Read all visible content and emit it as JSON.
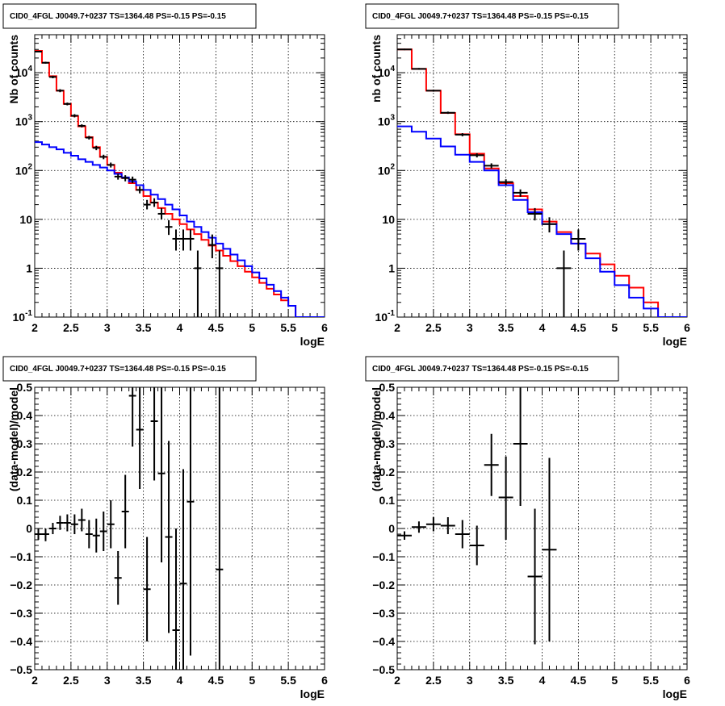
{
  "chart_data": [
    {
      "type": "line",
      "panel": "top-left",
      "title": "CID0_4FGL J0049.7+0237 TS=1364.48 PS=-0.15 PS=-0.15",
      "xlabel": "logE",
      "ylabel": "Nb of counts",
      "xlim": [
        2,
        6
      ],
      "ylim": [
        0.1,
        60000
      ],
      "yscale": "log",
      "grid": true,
      "x_ticks": [
        "2",
        "2.5",
        "3",
        "3.5",
        "4",
        "4.5",
        "5",
        "5.5",
        "6"
      ],
      "y_ticks": [
        {
          "value": 0.1,
          "base": "10",
          "exp": "-1"
        },
        {
          "value": 1,
          "label": "1"
        },
        {
          "value": 10,
          "label": "10"
        },
        {
          "value": 100,
          "base": "10",
          "exp": "2"
        },
        {
          "value": 1000,
          "base": "10",
          "exp": "3"
        },
        {
          "value": 10000,
          "base": "10",
          "exp": "4"
        }
      ],
      "bin_edges": [
        2.0,
        2.1,
        2.2,
        2.3,
        2.4,
        2.5,
        2.6,
        2.7,
        2.8,
        2.9,
        3.0,
        3.1,
        3.2,
        3.3,
        3.4,
        3.5,
        3.6,
        3.7,
        3.8,
        3.9,
        4.0,
        4.1,
        4.2,
        4.3,
        4.4,
        4.5,
        4.6,
        4.7,
        4.8,
        4.9,
        5.0,
        5.1,
        5.2,
        5.3,
        5.4,
        5.5,
        5.6,
        5.7,
        5.8,
        5.9,
        6.0
      ],
      "series": [
        {
          "kind": "step",
          "color": "#ff0000",
          "values": [
            28000,
            16000,
            8500,
            4300,
            2300,
            1300,
            800,
            480,
            300,
            190,
            130,
            90,
            70,
            55,
            40,
            30,
            22,
            17,
            13,
            10,
            8.0,
            6.2,
            5.0,
            3.8,
            2.9,
            2.3,
            1.8,
            1.4,
            1.1,
            0.85,
            0.65,
            0.5,
            0.38,
            0.29,
            0.22,
            0.17,
            0.1,
            0.1,
            0.1,
            0.1
          ]
        },
        {
          "kind": "step",
          "color": "#0000ff",
          "values": [
            380,
            340,
            300,
            270,
            230,
            200,
            170,
            150,
            130,
            115,
            100,
            85,
            72,
            60,
            50,
            40,
            32,
            26,
            20,
            16,
            12,
            9,
            7,
            5.5,
            4.2,
            3.2,
            2.5,
            1.9,
            1.45,
            1.1,
            0.82,
            0.62,
            0.46,
            0.34,
            0.25,
            0.17,
            0.1,
            0.1,
            0.1,
            0.1
          ]
        },
        {
          "kind": "points",
          "color": "#000000",
          "points": [
            {
              "x": 2.05,
              "y": 27000,
              "lo": 26000,
              "hi": 28000,
              "xerr": 0.05
            },
            {
              "x": 2.15,
              "y": 16000,
              "lo": 15300,
              "hi": 16800,
              "xerr": 0.05
            },
            {
              "x": 2.25,
              "y": 8200,
              "lo": 7700,
              "hi": 8700,
              "xerr": 0.05
            },
            {
              "x": 2.35,
              "y": 4300,
              "lo": 4000,
              "hi": 4600,
              "xerr": 0.05
            },
            {
              "x": 2.45,
              "y": 2300,
              "lo": 2150,
              "hi": 2450,
              "xerr": 0.05
            },
            {
              "x": 2.55,
              "y": 1320,
              "lo": 1220,
              "hi": 1420,
              "xerr": 0.05
            },
            {
              "x": 2.65,
              "y": 820,
              "lo": 760,
              "hi": 880,
              "xerr": 0.05
            },
            {
              "x": 2.75,
              "y": 470,
              "lo": 430,
              "hi": 510,
              "xerr": 0.05
            },
            {
              "x": 2.85,
              "y": 290,
              "lo": 260,
              "hi": 320,
              "xerr": 0.05
            },
            {
              "x": 2.95,
              "y": 190,
              "lo": 170,
              "hi": 210,
              "xerr": 0.05
            },
            {
              "x": 3.05,
              "y": 130,
              "lo": 115,
              "hi": 145,
              "xerr": 0.05
            },
            {
              "x": 3.15,
              "y": 75,
              "lo": 65,
              "hi": 85,
              "xerr": 0.05
            },
            {
              "x": 3.25,
              "y": 70,
              "lo": 60,
              "hi": 80,
              "xerr": 0.05
            },
            {
              "x": 3.35,
              "y": 65,
              "lo": 55,
              "hi": 75,
              "xerr": 0.05
            },
            {
              "x": 3.45,
              "y": 40,
              "lo": 34,
              "hi": 47,
              "xerr": 0.05
            },
            {
              "x": 3.55,
              "y": 20,
              "lo": 16,
              "hi": 25,
              "xerr": 0.05
            },
            {
              "x": 3.65,
              "y": 22,
              "lo": 18,
              "hi": 27,
              "xerr": 0.05
            },
            {
              "x": 3.75,
              "y": 13,
              "lo": 10,
              "hi": 17,
              "xerr": 0.05
            },
            {
              "x": 3.85,
              "y": 7,
              "lo": 4.8,
              "hi": 9.6,
              "xerr": 0.05
            },
            {
              "x": 3.95,
              "y": 4,
              "lo": 2.3,
              "hi": 6.2,
              "xerr": 0.05
            },
            {
              "x": 4.05,
              "y": 4,
              "lo": 2.3,
              "hi": 6.2,
              "xerr": 0.05
            },
            {
              "x": 4.15,
              "y": 4,
              "lo": 2.3,
              "hi": 6.2,
              "xerr": 0.05
            },
            {
              "x": 4.25,
              "y": 1,
              "lo": 0.1,
              "hi": 2.3,
              "xerr": 0.05
            },
            {
              "x": 4.45,
              "y": 3,
              "lo": 1.6,
              "hi": 4.9,
              "xerr": 0.05
            },
            {
              "x": 4.55,
              "y": 1,
              "lo": 0.1,
              "hi": 2.3,
              "xerr": 0.05
            }
          ]
        }
      ]
    },
    {
      "type": "line",
      "panel": "top-right",
      "title": "CID0_4FGL J0049.7+0237 TS=1364.48 PS=-0.15 PS=-0.15",
      "xlabel": "logE",
      "ylabel": "nb of counts",
      "xlim": [
        2,
        6
      ],
      "ylim": [
        0.1,
        60000
      ],
      "yscale": "log",
      "grid": true,
      "x_ticks": [
        "2",
        "2.5",
        "3",
        "3.5",
        "4",
        "4.5",
        "5",
        "5.5",
        "6"
      ],
      "y_ticks": [
        {
          "value": 0.1,
          "base": "10",
          "exp": "-1"
        },
        {
          "value": 1,
          "label": "1"
        },
        {
          "value": 10,
          "label": "10"
        },
        {
          "value": 100,
          "base": "10",
          "exp": "2"
        },
        {
          "value": 1000,
          "base": "10",
          "exp": "3"
        },
        {
          "value": 10000,
          "base": "10",
          "exp": "4"
        }
      ],
      "bin_edges": [
        2.0,
        2.2,
        2.4,
        2.6,
        2.8,
        3.0,
        3.2,
        3.4,
        3.6,
        3.8,
        4.0,
        4.2,
        4.4,
        4.6,
        4.8,
        5.0,
        5.2,
        5.4,
        5.6,
        5.8,
        6.0
      ],
      "series": [
        {
          "kind": "step",
          "color": "#ff0000",
          "values": [
            30000,
            12000,
            4300,
            1500,
            550,
            220,
            110,
            55,
            30,
            16,
            9,
            5.5,
            3.2,
            2.0,
            1.2,
            0.7,
            0.4,
            0.2,
            0.1,
            0.1
          ]
        },
        {
          "kind": "step",
          "color": "#0000ff",
          "values": [
            800,
            620,
            450,
            310,
            210,
            150,
            100,
            50,
            25,
            14,
            8,
            5.0,
            3.2,
            1.6,
            0.85,
            0.45,
            0.25,
            0.15,
            0.1,
            0.1
          ]
        },
        {
          "kind": "points",
          "color": "#000000",
          "points": [
            {
              "x": 2.1,
              "y": 30000,
              "lo": 29000,
              "hi": 31000,
              "xerr": 0.1
            },
            {
              "x": 2.3,
              "y": 12000,
              "lo": 11500,
              "hi": 12500,
              "xerr": 0.1
            },
            {
              "x": 2.5,
              "y": 4300,
              "lo": 4100,
              "hi": 4500,
              "xerr": 0.1
            },
            {
              "x": 2.7,
              "y": 1520,
              "lo": 1440,
              "hi": 1600,
              "xerr": 0.1
            },
            {
              "x": 2.9,
              "y": 540,
              "lo": 500,
              "hi": 580,
              "xerr": 0.1
            },
            {
              "x": 3.1,
              "y": 205,
              "lo": 185,
              "hi": 225,
              "xerr": 0.1
            },
            {
              "x": 3.3,
              "y": 125,
              "lo": 110,
              "hi": 140,
              "xerr": 0.1
            },
            {
              "x": 3.5,
              "y": 58,
              "lo": 50,
              "hi": 66,
              "xerr": 0.1
            },
            {
              "x": 3.7,
              "y": 35,
              "lo": 29,
              "hi": 41,
              "xerr": 0.1
            },
            {
              "x": 3.9,
              "y": 13,
              "lo": 9.5,
              "hi": 17,
              "xerr": 0.1
            },
            {
              "x": 4.1,
              "y": 8,
              "lo": 5.4,
              "hi": 11,
              "xerr": 0.1
            },
            {
              "x": 4.3,
              "y": 1,
              "lo": 0.1,
              "hi": 2.3,
              "xerr": 0.1
            },
            {
              "x": 4.5,
              "y": 4,
              "lo": 2.3,
              "hi": 6.2,
              "xerr": 0.1
            }
          ]
        }
      ]
    },
    {
      "type": "scatter",
      "panel": "bottom-left",
      "title": "CID0_4FGL J0049.7+0237 TS=1364.48 PS=-0.15 PS=-0.15",
      "xlabel": "logE",
      "ylabel": "(data-model)/model",
      "xlim": [
        2,
        6
      ],
      "ylim": [
        -0.5,
        0.5
      ],
      "yscale": "linear",
      "grid": true,
      "x_ticks": [
        "2",
        "2.5",
        "3",
        "3.5",
        "4",
        "4.5",
        "5",
        "5.5",
        "6"
      ],
      "y_ticks": [
        {
          "value": -0.5,
          "label": "−0.5"
        },
        {
          "value": -0.4,
          "label": "−0.4"
        },
        {
          "value": -0.3,
          "label": "−0.3"
        },
        {
          "value": -0.2,
          "label": "−0.2"
        },
        {
          "value": -0.1,
          "label": "−0.1"
        },
        {
          "value": 0,
          "label": "0"
        },
        {
          "value": 0.1,
          "label": "0.1"
        },
        {
          "value": 0.2,
          "label": "0.2"
        },
        {
          "value": 0.3,
          "label": "0.3"
        },
        {
          "value": 0.4,
          "label": "0.4"
        },
        {
          "value": 0.5,
          "label": "0.5"
        }
      ],
      "series": [
        {
          "kind": "points",
          "color": "#000000",
          "points": [
            {
              "x": 2.05,
              "y": -0.02,
              "lo": -0.04,
              "hi": 0.0,
              "xerr": 0.05
            },
            {
              "x": 2.15,
              "y": -0.02,
              "lo": -0.045,
              "hi": 0.0,
              "xerr": 0.05
            },
            {
              "x": 2.25,
              "y": 0.0,
              "lo": -0.02,
              "hi": 0.02,
              "xerr": 0.05
            },
            {
              "x": 2.35,
              "y": 0.02,
              "lo": -0.005,
              "hi": 0.045,
              "xerr": 0.05
            },
            {
              "x": 2.45,
              "y": 0.02,
              "lo": -0.01,
              "hi": 0.05,
              "xerr": 0.05
            },
            {
              "x": 2.55,
              "y": 0.015,
              "lo": -0.02,
              "hi": 0.05,
              "xerr": 0.05
            },
            {
              "x": 2.65,
              "y": 0.03,
              "lo": -0.01,
              "hi": 0.07,
              "xerr": 0.05
            },
            {
              "x": 2.75,
              "y": -0.02,
              "lo": -0.07,
              "hi": 0.03,
              "xerr": 0.05
            },
            {
              "x": 2.85,
              "y": -0.025,
              "lo": -0.085,
              "hi": 0.035,
              "xerr": 0.05
            },
            {
              "x": 2.95,
              "y": -0.01,
              "lo": -0.08,
              "hi": 0.06,
              "xerr": 0.05
            },
            {
              "x": 3.05,
              "y": 0.015,
              "lo": -0.07,
              "hi": 0.1,
              "xerr": 0.05
            },
            {
              "x": 3.15,
              "y": -0.175,
              "lo": -0.27,
              "hi": -0.08,
              "xerr": 0.05
            },
            {
              "x": 3.25,
              "y": 0.06,
              "lo": -0.07,
              "hi": 0.19,
              "xerr": 0.05
            },
            {
              "x": 3.35,
              "y": 0.47,
              "lo": 0.29,
              "hi": 0.65,
              "xerr": 0.05
            },
            {
              "x": 3.45,
              "y": 0.35,
              "lo": 0.14,
              "hi": 0.56,
              "xerr": 0.05
            },
            {
              "x": 3.55,
              "y": -0.215,
              "lo": -0.4,
              "hi": -0.03,
              "xerr": 0.05
            },
            {
              "x": 3.65,
              "y": 0.38,
              "lo": 0.17,
              "hi": 0.59,
              "xerr": 0.05
            },
            {
              "x": 3.75,
              "y": 0.195,
              "lo": -0.12,
              "hi": 0.51,
              "xerr": 0.05
            },
            {
              "x": 3.85,
              "y": -0.03,
              "lo": -0.37,
              "hi": 0.31,
              "xerr": 0.05
            },
            {
              "x": 3.95,
              "y": -0.36,
              "lo": -0.72,
              "hi": 0.0,
              "xerr": 0.05
            },
            {
              "x": 4.05,
              "y": -0.195,
              "lo": -0.55,
              "hi": 0.21,
              "xerr": 0.05
            },
            {
              "x": 4.15,
              "y": 0.095,
              "lo": -0.45,
              "hi": 0.64,
              "xerr": 0.05
            },
            {
              "x": 4.55,
              "y": -0.145,
              "lo": -0.75,
              "hi": 0.6,
              "xerr": 0.05
            }
          ]
        }
      ]
    },
    {
      "type": "scatter",
      "panel": "bottom-right",
      "title": "CID0_4FGL J0049.7+0237 TS=1364.48 PS=-0.15 PS=-0.15",
      "xlabel": "logE",
      "ylabel": "(data-model)/model",
      "xlim": [
        2,
        6
      ],
      "ylim": [
        -0.5,
        0.5
      ],
      "yscale": "linear",
      "grid": true,
      "x_ticks": [
        "2",
        "2.5",
        "3",
        "3.5",
        "4",
        "4.5",
        "5",
        "5.5",
        "6"
      ],
      "y_ticks": [
        {
          "value": -0.5,
          "label": "−0.5"
        },
        {
          "value": -0.4,
          "label": "−0.4"
        },
        {
          "value": -0.3,
          "label": "−0.3"
        },
        {
          "value": -0.2,
          "label": "−0.2"
        },
        {
          "value": -0.1,
          "label": "−0.1"
        },
        {
          "value": 0,
          "label": "0"
        },
        {
          "value": 0.1,
          "label": "0.1"
        },
        {
          "value": 0.2,
          "label": "0.2"
        },
        {
          "value": 0.3,
          "label": "0.3"
        },
        {
          "value": 0.4,
          "label": "0.4"
        },
        {
          "value": 0.5,
          "label": "0.5"
        }
      ],
      "series": [
        {
          "kind": "points",
          "color": "#000000",
          "points": [
            {
              "x": 2.1,
              "y": -0.025,
              "lo": -0.04,
              "hi": -0.01,
              "xerr": 0.1
            },
            {
              "x": 2.3,
              "y": 0.005,
              "lo": -0.015,
              "hi": 0.025,
              "xerr": 0.1
            },
            {
              "x": 2.5,
              "y": 0.015,
              "lo": -0.01,
              "hi": 0.04,
              "xerr": 0.1
            },
            {
              "x": 2.7,
              "y": 0.01,
              "lo": -0.02,
              "hi": 0.04,
              "xerr": 0.1
            },
            {
              "x": 2.9,
              "y": -0.02,
              "lo": -0.07,
              "hi": 0.03,
              "xerr": 0.1
            },
            {
              "x": 3.1,
              "y": -0.06,
              "lo": -0.13,
              "hi": 0.01,
              "xerr": 0.1
            },
            {
              "x": 3.3,
              "y": 0.225,
              "lo": 0.115,
              "hi": 0.335,
              "xerr": 0.1
            },
            {
              "x": 3.5,
              "y": 0.11,
              "lo": -0.04,
              "hi": 0.255,
              "xerr": 0.1
            },
            {
              "x": 3.7,
              "y": 0.3,
              "lo": 0.08,
              "hi": 0.52,
              "xerr": 0.1
            },
            {
              "x": 3.9,
              "y": -0.17,
              "lo": -0.41,
              "hi": 0.07,
              "xerr": 0.1
            },
            {
              "x": 4.1,
              "y": -0.075,
              "lo": -0.4,
              "hi": 0.25,
              "xerr": 0.1
            }
          ]
        }
      ]
    }
  ]
}
